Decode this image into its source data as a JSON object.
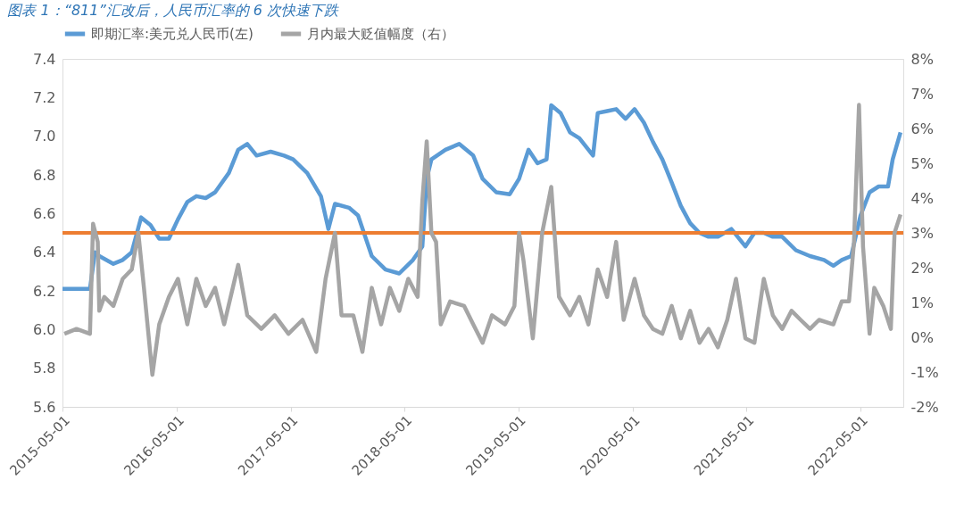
{
  "chart_data": {
    "type": "line",
    "title": "图表 1：“811”汇改后，人民币汇率的 6 次快速下跌",
    "xlim": [
      "2015-05-01",
      "2022-09-15"
    ],
    "xticks": [
      "2015-05-01",
      "2016-05-01",
      "2017-05-01",
      "2018-05-01",
      "2019-05-01",
      "2020-05-01",
      "2021-05-01",
      "2022-05-01"
    ],
    "ylim": [
      5.6,
      7.4
    ],
    "yticks": [
      {
        "value": 5.6,
        "label": "5.6"
      },
      {
        "value": 5.8,
        "label": "5.8"
      },
      {
        "value": 6,
        "label": "6.0"
      },
      {
        "value": 6.2,
        "label": "6.2"
      },
      {
        "value": 6.4,
        "label": "6.4"
      },
      {
        "value": 6.6,
        "label": "6.6"
      },
      {
        "value": 6.8,
        "label": "6.8"
      },
      {
        "value": 7,
        "label": "7.0"
      },
      {
        "value": 7.2,
        "label": "7.2"
      },
      {
        "value": 7.4,
        "label": "7.4"
      }
    ],
    "y2lim": [
      -2,
      8
    ],
    "y2ticks": [
      {
        "value": -2,
        "label": "-2%"
      },
      {
        "value": -1,
        "label": "-1%"
      },
      {
        "value": 0,
        "label": "0%"
      },
      {
        "value": 1,
        "label": "1%"
      },
      {
        "value": 2,
        "label": "2%"
      },
      {
        "value": 3,
        "label": "3%"
      },
      {
        "value": 4,
        "label": "4%"
      },
      {
        "value": 5,
        "label": "5%"
      },
      {
        "value": 6,
        "label": "6%"
      },
      {
        "value": 7,
        "label": "7%"
      },
      {
        "value": 8,
        "label": "8%"
      }
    ],
    "grid": false,
    "legend": "top",
    "line_style": "solid",
    "marker": "none",
    "ref_lines": [
      {
        "axis": "y",
        "value": 6.5,
        "color": "#ed7d31"
      }
    ],
    "series": [
      {
        "name": "即期汇率:美元兑人民币(左)",
        "color": "#5b9bd5",
        "x": [
          "2015-05-01",
          "2015-07-28",
          "2015-08-13",
          "2015-08-27",
          "2015-10-11",
          "2015-11-10",
          "2015-12-09",
          "2016-01-08",
          "2016-02-07",
          "2016-03-06",
          "2016-04-06",
          "2016-05-05",
          "2016-06-04",
          "2016-07-03",
          "2016-08-02",
          "2016-09-01",
          "2016-10-15",
          "2016-11-14",
          "2016-12-13",
          "2017-01-12",
          "2017-02-26",
          "2017-04-10",
          "2017-05-09",
          "2017-06-23",
          "2017-08-06",
          "2017-08-30",
          "2017-09-20",
          "2017-11-04",
          "2017-12-03",
          "2018-01-16",
          "2018-03-01",
          "2018-04-14",
          "2018-05-28",
          "2018-06-27",
          "2018-07-11",
          "2018-07-26",
          "2018-09-09",
          "2018-10-23",
          "2018-12-07",
          "2019-01-06",
          "2019-02-19",
          "2019-04-03",
          "2019-05-03",
          "2019-06-02",
          "2019-07-01",
          "2019-07-30",
          "2019-08-14",
          "2019-09-13",
          "2019-10-13",
          "2019-11-12",
          "2019-12-26",
          "2020-01-10",
          "2020-02-09",
          "2020-03-09",
          "2020-04-08",
          "2020-05-07",
          "2020-06-06",
          "2020-07-05",
          "2020-08-04",
          "2020-09-03",
          "2020-10-02",
          "2020-11-01",
          "2020-12-01",
          "2020-12-30",
          "2021-01-29",
          "2021-03-13",
          "2021-04-27",
          "2021-05-26",
          "2021-06-25",
          "2021-07-24",
          "2021-08-23",
          "2021-10-06",
          "2021-11-20",
          "2022-01-04",
          "2022-02-03",
          "2022-03-02",
          "2022-04-01",
          "2022-05-01",
          "2022-05-30",
          "2022-06-28",
          "2022-07-28",
          "2022-08-12",
          "2022-09-06"
        ],
        "values": [
          6.21,
          6.21,
          6.4,
          6.38,
          6.34,
          6.36,
          6.4,
          6.58,
          6.54,
          6.47,
          6.47,
          6.57,
          6.66,
          6.69,
          6.68,
          6.71,
          6.81,
          6.93,
          6.96,
          6.9,
          6.92,
          6.9,
          6.88,
          6.81,
          6.69,
          6.52,
          6.65,
          6.63,
          6.59,
          6.38,
          6.31,
          6.29,
          6.36,
          6.43,
          6.78,
          6.88,
          6.93,
          6.96,
          6.9,
          6.78,
          6.71,
          6.7,
          6.78,
          6.93,
          6.86,
          6.88,
          7.16,
          7.12,
          7.02,
          6.99,
          6.9,
          7.12,
          7.13,
          7.14,
          7.09,
          7.14,
          7.07,
          6.97,
          6.88,
          6.76,
          6.64,
          6.55,
          6.5,
          6.48,
          6.48,
          6.52,
          6.43,
          6.5,
          6.5,
          6.48,
          6.48,
          6.41,
          6.38,
          6.36,
          6.33,
          6.36,
          6.38,
          6.59,
          6.71,
          6.74,
          6.74,
          6.88,
          7.02
        ]
      },
      {
        "name": "月内最大贬值幅度（右）",
        "color": "#a5a5a5",
        "axis": "y2",
        "x": [
          "2015-05-07",
          "2015-06-15",
          "2015-07-28",
          "2015-08-07",
          "2015-08-22",
          "2015-08-27",
          "2015-09-12",
          "2015-10-11",
          "2015-11-10",
          "2015-12-09",
          "2015-12-30",
          "2016-01-17",
          "2016-02-13",
          "2016-03-06",
          "2016-04-06",
          "2016-05-05",
          "2016-06-04",
          "2016-07-03",
          "2016-08-02",
          "2016-09-01",
          "2016-09-30",
          "2016-11-14",
          "2016-12-13",
          "2017-01-27",
          "2017-03-11",
          "2017-04-24",
          "2017-06-08",
          "2017-07-22",
          "2017-08-21",
          "2017-09-20",
          "2017-10-11",
          "2017-11-18",
          "2017-12-17",
          "2018-01-16",
          "2018-02-15",
          "2018-03-15",
          "2018-04-14",
          "2018-05-13",
          "2018-06-12",
          "2018-06-27",
          "2018-07-11",
          "2018-07-26",
          "2018-08-10",
          "2018-08-25",
          "2018-09-24",
          "2018-11-08",
          "2018-12-07",
          "2019-01-06",
          "2019-02-05",
          "2019-03-19",
          "2019-04-18",
          "2019-05-03",
          "2019-05-17",
          "2019-06-16",
          "2019-07-16",
          "2019-08-14",
          "2019-09-08",
          "2019-10-13",
          "2019-11-12",
          "2019-12-11",
          "2020-01-10",
          "2020-02-09",
          "2020-03-09",
          "2020-04-02",
          "2020-05-07",
          "2020-06-06",
          "2020-07-05",
          "2020-08-04",
          "2020-09-03",
          "2020-10-02",
          "2020-11-01",
          "2020-12-01",
          "2020-12-30",
          "2021-01-29",
          "2021-02-28",
          "2021-03-28",
          "2021-04-27",
          "2021-05-26",
          "2021-06-25",
          "2021-07-24",
          "2021-08-23",
          "2021-09-22",
          "2021-10-21",
          "2021-11-20",
          "2021-12-19",
          "2022-02-03",
          "2022-03-02",
          "2022-03-25",
          "2022-04-10",
          "2022-04-26",
          "2022-05-09",
          "2022-05-30",
          "2022-06-14",
          "2022-07-13",
          "2022-08-06",
          "2022-08-18",
          "2022-09-06"
        ],
        "values": [
          0.1,
          0.24,
          0.1,
          3.26,
          2.74,
          0.76,
          1.16,
          0.9,
          1.68,
          1.95,
          3.0,
          1.42,
          -1.08,
          0.37,
          1.16,
          1.68,
          0.37,
          1.68,
          0.9,
          1.42,
          0.37,
          2.08,
          0.63,
          0.24,
          0.63,
          0.1,
          0.5,
          -0.42,
          1.68,
          3.0,
          0.63,
          0.63,
          -0.42,
          1.42,
          0.37,
          1.42,
          0.76,
          1.68,
          1.16,
          3.92,
          5.63,
          3.0,
          2.74,
          0.37,
          1.03,
          0.9,
          0.37,
          -0.16,
          0.63,
          0.37,
          0.9,
          3.0,
          2.21,
          -0.03,
          3.0,
          4.32,
          1.16,
          0.63,
          1.16,
          0.37,
          1.95,
          1.16,
          2.74,
          0.5,
          1.68,
          0.63,
          0.24,
          0.1,
          0.9,
          -0.03,
          0.76,
          -0.16,
          0.24,
          -0.29,
          0.5,
          1.68,
          -0.03,
          -0.16,
          1.68,
          0.63,
          0.24,
          0.76,
          0.5,
          0.24,
          0.5,
          0.37,
          1.03,
          1.03,
          2.74,
          6.68,
          2.6,
          0.1,
          1.42,
          0.9,
          0.24,
          3.0,
          3.53
        ]
      }
    ]
  }
}
